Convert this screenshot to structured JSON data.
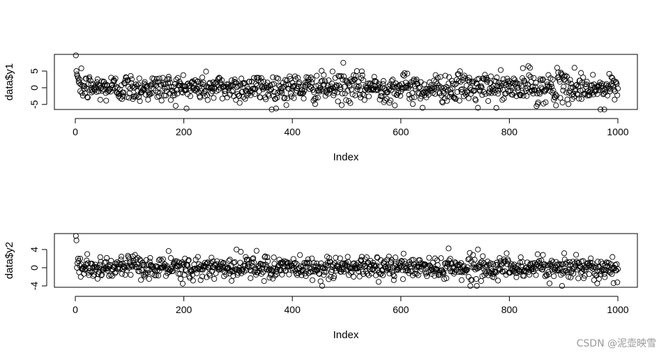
{
  "chart_data": [
    {
      "type": "scatter",
      "xlabel": "Index",
      "ylabel": "data$y1",
      "xlim": [
        0,
        1000
      ],
      "ylim": [
        -6.5,
        10
      ],
      "xticks": [
        0,
        200,
        400,
        600,
        800,
        1000
      ],
      "xtick_labels": [
        "0",
        "200",
        "400",
        "600",
        "800",
        "1000"
      ],
      "yticks": [
        -5,
        0,
        5
      ],
      "ytick_labels": [
        "-5",
        "0",
        "5"
      ],
      "n_points": 1000,
      "center": 0,
      "spread": 2.1,
      "first_values": [
        10,
        5,
        4,
        3.5,
        3,
        2,
        1.5,
        2.5,
        -1,
        1
      ],
      "outliers": [
        {
          "x": 494,
          "y": 7.5
        },
        {
          "x": 835,
          "y": 6.5
        },
        {
          "x": 888,
          "y": 6
        },
        {
          "x": 920,
          "y": 6
        },
        {
          "x": 838,
          "y": 6
        },
        {
          "x": 362,
          "y": -6.5
        },
        {
          "x": 640,
          "y": -6
        },
        {
          "x": 968,
          "y": -6.5
        },
        {
          "x": 975,
          "y": -6.5
        },
        {
          "x": 742,
          "y": -6
        },
        {
          "x": 850,
          "y": -5.5
        }
      ],
      "marker": "open-circle",
      "grid": false
    },
    {
      "type": "scatter",
      "xlabel": "Index",
      "ylabel": "data$y2",
      "xlim": [
        0,
        1000
      ],
      "ylim": [
        -4.3,
        7.5
      ],
      "xticks": [
        0,
        200,
        400,
        600,
        800,
        1000
      ],
      "xtick_labels": [
        "0",
        "200",
        "400",
        "600",
        "800",
        "1000"
      ],
      "yticks": [
        -4,
        0,
        4
      ],
      "ytick_labels": [
        "-4",
        "0",
        "4"
      ],
      "n_points": 1000,
      "center": 0,
      "spread": 1.2,
      "first_values": [
        7,
        6,
        0,
        1,
        2,
        1.5,
        -1,
        0.5,
        2,
        -2
      ],
      "outliers": [
        {
          "x": 297,
          "y": 4
        },
        {
          "x": 305,
          "y": 3.5
        },
        {
          "x": 742,
          "y": 4
        },
        {
          "x": 455,
          "y": -4
        },
        {
          "x": 198,
          "y": -3.5
        },
        {
          "x": 897,
          "y": -4
        },
        {
          "x": 740,
          "y": -4
        },
        {
          "x": 22,
          "y": 3
        }
      ],
      "marker": "open-circle",
      "grid": false
    }
  ],
  "watermark": "CSDN @泥壶映雪"
}
